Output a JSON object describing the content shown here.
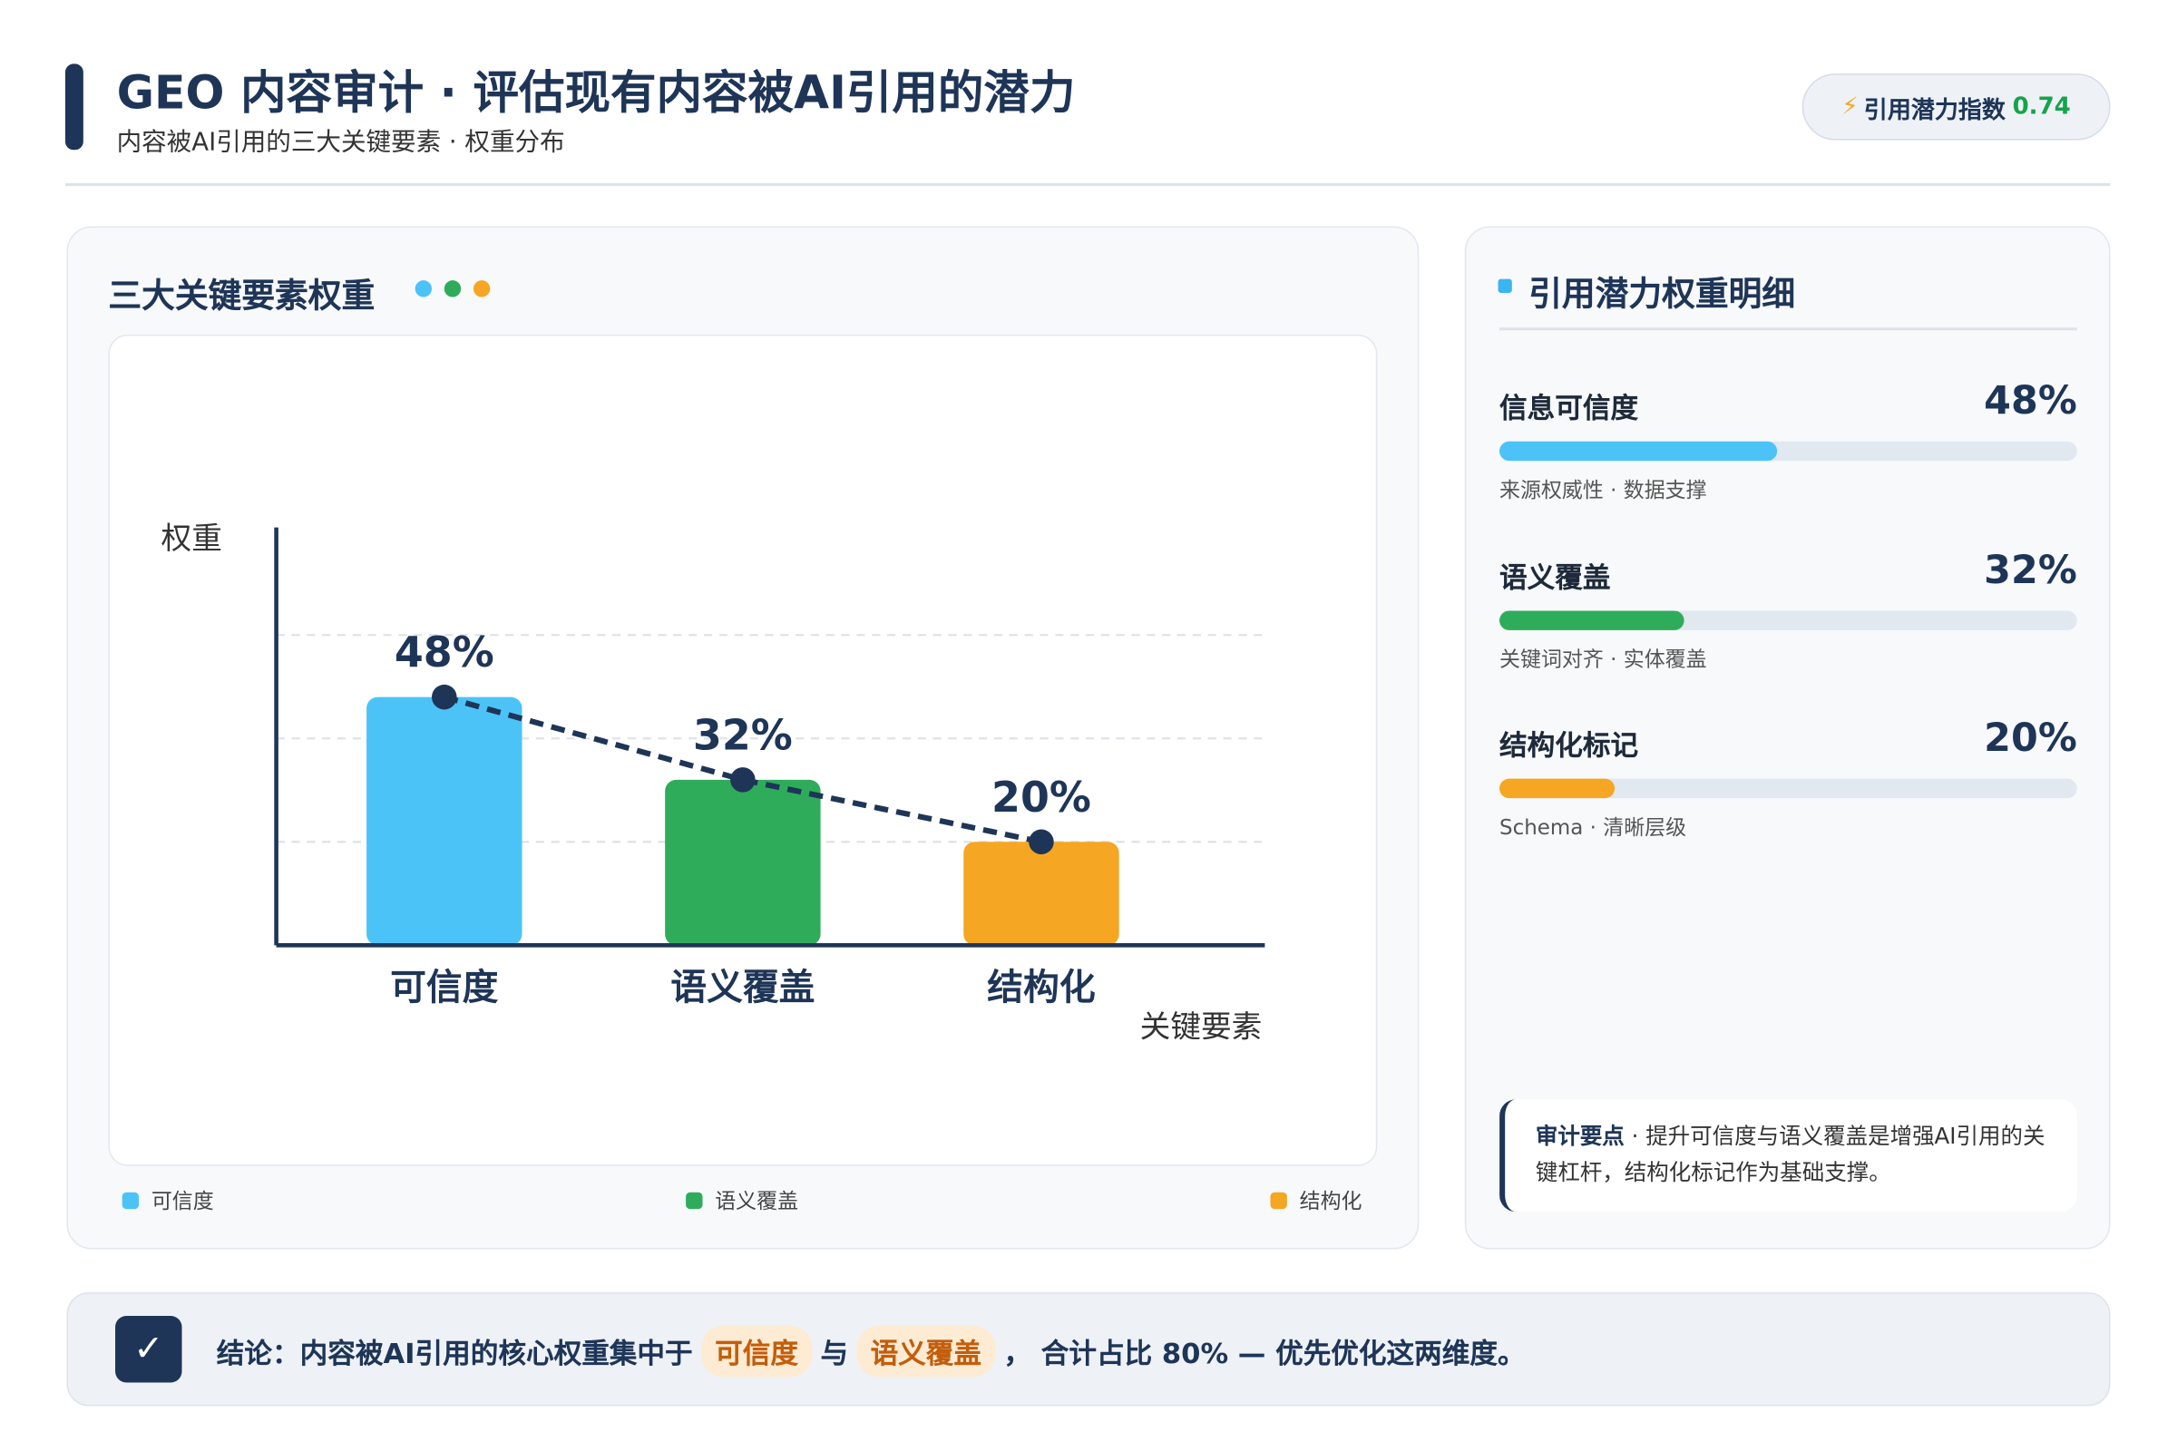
{
  "header": {
    "title": "GEO 内容审计 · 评估现有内容被AI引用的潜力",
    "subtitle": "内容被AI引用的三大关键要素 · 权重分布",
    "badge": {
      "label": "引用潜力指数",
      "value": 0.74
    }
  },
  "chart_panel": {
    "title": "三大关键要素权重"
  },
  "chart_data": {
    "type": "bar",
    "categories": [
      "可信度",
      "语义覆盖",
      "结构化"
    ],
    "values": [
      48,
      32,
      20
    ],
    "value_labels": [
      "48%",
      "32%",
      "20%"
    ],
    "colors": [
      "#4cc3f7",
      "#2eac5a",
      "#f5a623"
    ],
    "line_overlay": true,
    "line_color": "#1e3557",
    "ylim": [
      0,
      80
    ],
    "grid_lines": [
      20,
      40,
      60
    ],
    "y_label": "权重",
    "x_label": "关键要素",
    "legend": "bottom"
  },
  "detail_panel": {
    "title": "引用潜力权重明细",
    "scale_max": 100,
    "items": [
      {
        "name": "信息可信度",
        "value": 48,
        "value_label": "48%",
        "note": "来源权威性 · 数据支撑",
        "color": "#4cc3f7"
      },
      {
        "name": "语义覆盖",
        "value": 32,
        "value_label": "32%",
        "note": "关键词对齐 · 实体覆盖",
        "color": "#2eac5a"
      },
      {
        "name": "结构化标记",
        "value": 20,
        "value_label": "20%",
        "note": "Schema · 清晰层级",
        "color": "#f5a623"
      }
    ],
    "callout": {
      "heading": "审计要点",
      "text": "· 提升可信度与语义覆盖是增强AI引用的关键杠杆，结构化标记作为基础支撑。"
    }
  },
  "conclusion": {
    "prefix": "结论：内容被AI引用的核心权重集中于",
    "highlights": [
      "可信度",
      "语义覆盖"
    ],
    "joiner": "与",
    "suffix": "， 合计占比 80% — 优先优化这两维度。"
  }
}
